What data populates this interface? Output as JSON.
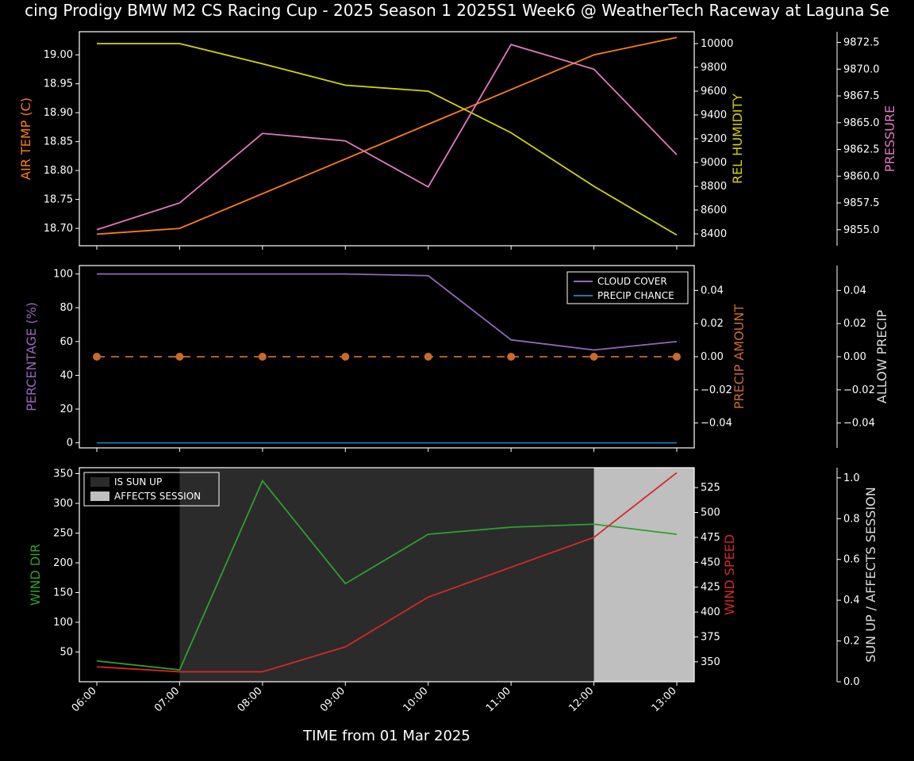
{
  "title": "cing Prodigy BMW M2 CS Racing Cup - 2025 Season 1 2025S1 Week6 @ WeatherTech Raceway at Laguna Se",
  "xlabel": "TIME from 01 Mar 2025",
  "x_categories": [
    "06:00",
    "07:00",
    "08:00",
    "09:00",
    "10:00",
    "11:00",
    "12:00",
    "13:00"
  ],
  "colors": {
    "air_temp": "#ff7f0e",
    "rel_humidity": "#d4d400",
    "pressure": "#e377c2",
    "percentage": "#9467bd",
    "precip_amount": "#c96a2b",
    "allow_precip": "#dddddd",
    "cloud_cover": "#9467bd",
    "precip_chance": "#1f77b4",
    "wind_dir": "#2ca02c",
    "wind_speed": "#d62728",
    "sun_axis": "#dddddd",
    "bg_dark": "#2b2b2b",
    "bg_light": "#bfbfbf"
  },
  "panel1": {
    "air_temp": {
      "label": "AIR TEMP (C)",
      "values": [
        18.69,
        18.7,
        18.76,
        18.82,
        18.88,
        18.94,
        19.0,
        19.03
      ],
      "ylim": [
        18.67,
        19.04
      ],
      "yticks": [
        18.7,
        18.75,
        18.8,
        18.85,
        18.9,
        18.95,
        19.0
      ]
    },
    "rel_humidity": {
      "label": "REL HUMIDITY",
      "values": [
        10000,
        10000,
        9830,
        9650,
        9600,
        9250,
        8800,
        8390
      ],
      "ylim": [
        8300,
        10100
      ],
      "yticks": [
        8400,
        8600,
        8800,
        9000,
        9200,
        9400,
        9600,
        9800,
        10000
      ]
    },
    "pressure": {
      "label": "PRESSURE",
      "values": [
        9855.0,
        9857.5,
        9864.0,
        9863.3,
        9859.0,
        9872.3,
        9870.0,
        9862.0
      ],
      "ylim": [
        9853.5,
        9873.5
      ],
      "yticks": [
        9855.0,
        9857.5,
        9860.0,
        9862.5,
        9865.0,
        9867.5,
        9870.0,
        9872.5
      ]
    }
  },
  "panel2": {
    "percentage": {
      "label": "PERCENTAGE (%)",
      "ylim": [
        -3,
        105
      ],
      "yticks": [
        0,
        20,
        40,
        60,
        80,
        100
      ]
    },
    "precip_amount": {
      "label": "PRECIP AMOUNT",
      "ylim": [
        -0.055,
        0.055
      ],
      "yticks": [
        -0.04,
        -0.02,
        0.0,
        0.02,
        0.04
      ],
      "values": [
        0,
        0,
        0,
        0,
        0,
        0,
        0,
        0
      ]
    },
    "allow_precip": {
      "label": "ALLOW PRECIP",
      "ylim": [
        -0.055,
        0.055
      ],
      "yticks": [
        -0.04,
        -0.02,
        0.0,
        0.02,
        0.04
      ]
    },
    "cloud_cover": {
      "label": "CLOUD COVER",
      "values": [
        100,
        100,
        100,
        100,
        99,
        61,
        55,
        60
      ]
    },
    "precip_chance": {
      "label": "PRECIP CHANCE",
      "values": [
        0,
        0,
        0,
        0,
        0,
        0,
        0,
        0
      ]
    }
  },
  "panel3": {
    "wind_dir": {
      "label": "WIND DIR",
      "values": [
        35,
        20,
        338,
        165,
        248,
        260,
        265,
        248
      ],
      "ylim": [
        0,
        360
      ],
      "yticks": [
        50,
        100,
        150,
        200,
        250,
        300,
        350
      ]
    },
    "wind_speed": {
      "label": "WIND SPEED",
      "values": [
        345,
        340,
        340,
        365,
        415,
        445,
        475,
        540
      ],
      "ylim": [
        330,
        545
      ],
      "yticks": [
        350,
        375,
        400,
        425,
        450,
        475,
        500,
        525
      ]
    },
    "sun": {
      "label": "SUN UP / AFFECTS SESSION",
      "ylim": [
        0,
        1.05
      ],
      "yticks": [
        0.0,
        0.2,
        0.4,
        0.6,
        0.8,
        1.0
      ]
    },
    "legend": {
      "is_sun_up": "IS SUN UP",
      "affects_session": "AFFECTS SESSION"
    },
    "sun_up_range": [
      1,
      7.5
    ],
    "affects_range": [
      6,
      7.5
    ]
  }
}
